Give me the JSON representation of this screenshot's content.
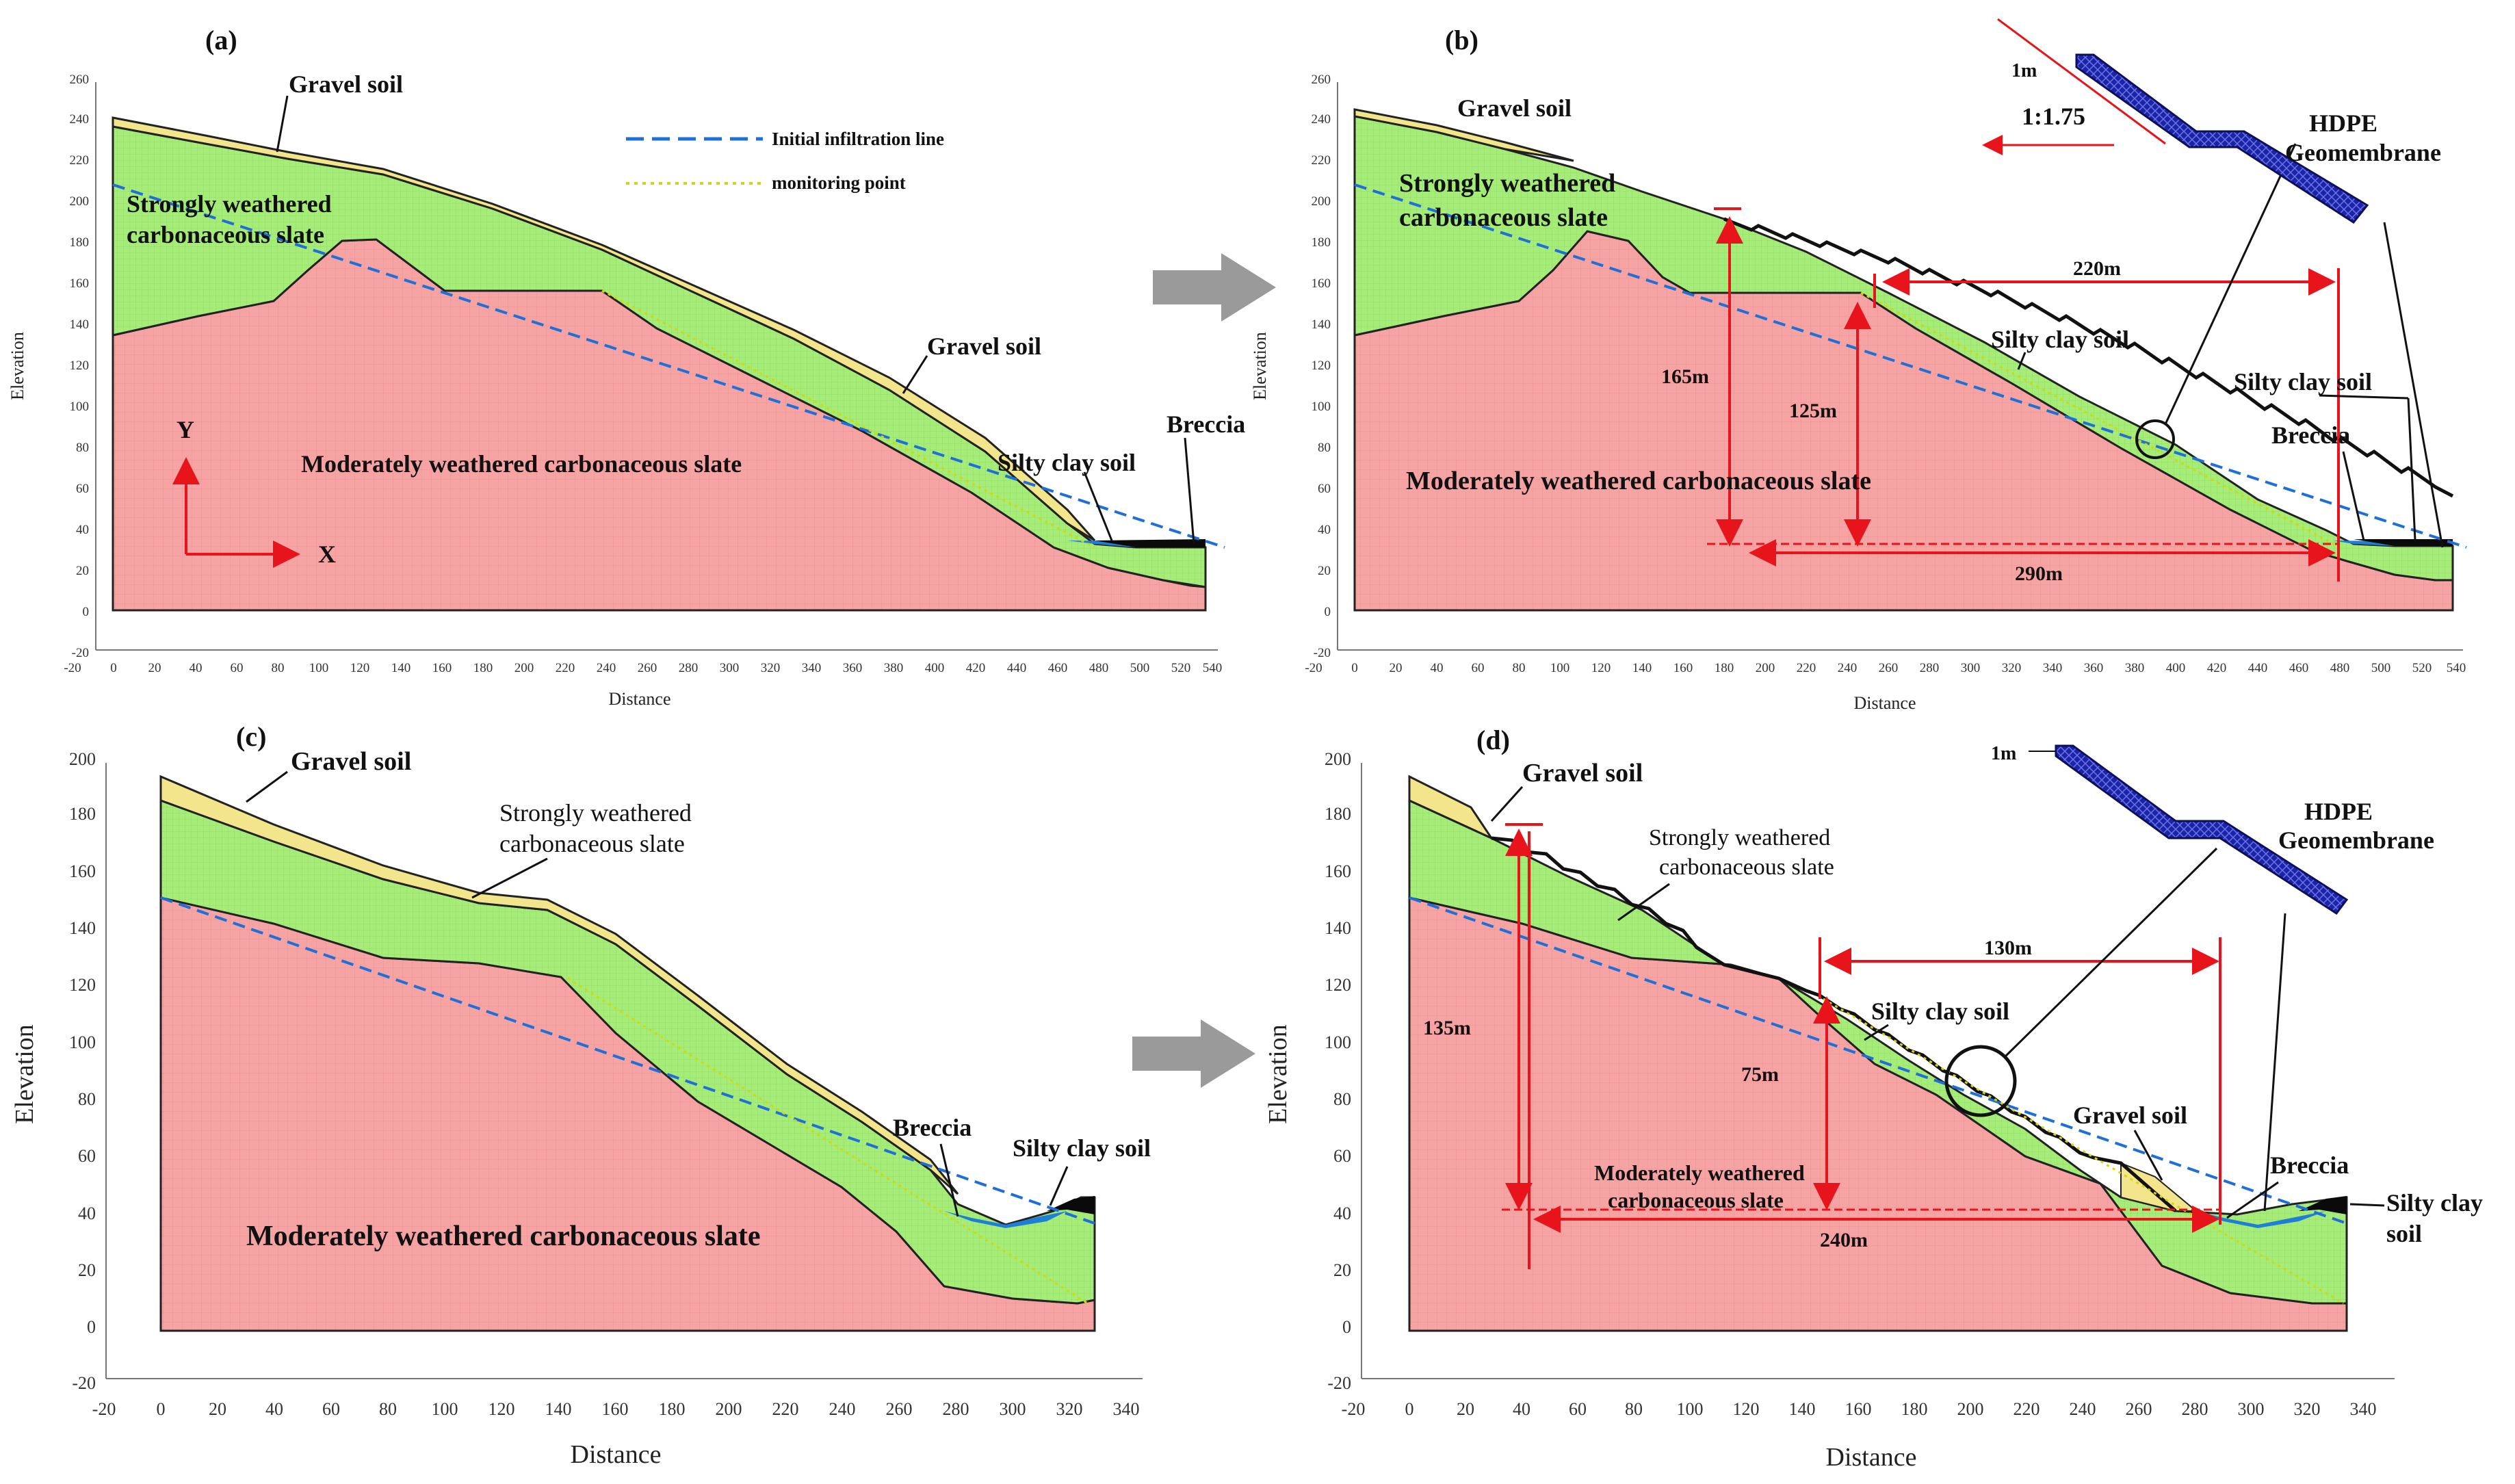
{
  "colors": {
    "moderately_weathered": "#f5a3a3",
    "strongly_weathered": "#a6ec79",
    "gravel": "#f2e58c",
    "breccia": "#1f7fd6",
    "silty_clay": "#0a0a0a",
    "infiltration_line": "#1f6fd8",
    "monitoring_line": "#d8d800",
    "dimension_red": "#e8141c",
    "membrane": "#1b23a6",
    "arrow_gray": "#9a9a9a"
  },
  "panels": [
    {
      "id": "a",
      "tag": "(a)",
      "axes": {
        "xlabel": "Distance",
        "ylabel": "Elevation",
        "x_ticks": [
          "-20",
          "0",
          "20",
          "40",
          "60",
          "80",
          "100",
          "120",
          "140",
          "160",
          "180",
          "200",
          "220",
          "240",
          "260",
          "280",
          "300",
          "320",
          "340",
          "360",
          "380",
          "400",
          "420",
          "440",
          "460",
          "480",
          "500",
          "520",
          "540"
        ],
        "y_ticks": [
          "-20",
          "0",
          "20",
          "40",
          "60",
          "80",
          "100",
          "120",
          "140",
          "160",
          "180",
          "200",
          "220",
          "240",
          "260"
        ]
      },
      "labels": {
        "gravel_top": "Gravel soil",
        "strongly_1": "Strongly weathered",
        "strongly_2": "carbonaceous slate",
        "gravel_right": "Gravel soil",
        "moderately": "Moderately weathered carbonaceous slate",
        "silty_clay": "Silty clay soil",
        "breccia": "Breccia",
        "axis_y": "Y",
        "axis_x": "X"
      },
      "legend": {
        "infiltration": "Initial infiltration line",
        "monitoring": "monitoring point"
      }
    },
    {
      "id": "b",
      "tag": "(b)",
      "axes": {
        "xlabel": "Distance",
        "ylabel": "Elevation",
        "x_ticks": [
          "-20",
          "0",
          "20",
          "40",
          "60",
          "80",
          "100",
          "120",
          "140",
          "160",
          "180",
          "200",
          "220",
          "240",
          "260",
          "280",
          "300",
          "320",
          "340",
          "360",
          "380",
          "400",
          "420",
          "440",
          "460",
          "480",
          "500",
          "520",
          "540"
        ],
        "y_ticks": [
          "-20",
          "0",
          "20",
          "40",
          "60",
          "80",
          "100",
          "120",
          "140",
          "160",
          "180",
          "200",
          "220",
          "240",
          "260"
        ]
      },
      "labels": {
        "gravel_top": "Gravel soil",
        "strongly_1": "Strongly weathered",
        "strongly_2": "carbonaceous slate",
        "silty_clay_mid": "Silty clay soil",
        "moderately": "Moderately weathered carbonaceous slate",
        "silty_clay_right": "Silty clay soil",
        "breccia": "Breccia",
        "dim_220": "220m",
        "dim_165": "165m",
        "dim_125": "125m",
        "dim_290": "290m",
        "inset_1m": "1m",
        "inset_ratio": "1:1.75",
        "hdpe_1": "HDPE",
        "hdpe_2": "Geomembrane"
      }
    },
    {
      "id": "c",
      "tag": "(c)",
      "axes": {
        "xlabel": "Distance",
        "ylabel": "Elevation",
        "x_ticks": [
          "-20",
          "0",
          "20",
          "40",
          "60",
          "80",
          "100",
          "120",
          "140",
          "160",
          "180",
          "200",
          "220",
          "240",
          "260",
          "280",
          "300",
          "320",
          "340"
        ],
        "y_ticks": [
          "-20",
          "0",
          "20",
          "40",
          "60",
          "80",
          "100",
          "120",
          "140",
          "160",
          "180",
          "200"
        ]
      },
      "labels": {
        "gravel_top": "Gravel soil",
        "strongly_1": "Strongly weathered",
        "strongly_2": "carbonaceous slate",
        "breccia": "Breccia",
        "silty_clay": "Silty clay soil",
        "moderately": "Moderately weathered carbonaceous slate"
      }
    },
    {
      "id": "d",
      "tag": "(d)",
      "axes": {
        "xlabel": "Distance",
        "ylabel": "Elevation",
        "x_ticks": [
          "-20",
          "0",
          "20",
          "40",
          "60",
          "80",
          "100",
          "120",
          "140",
          "160",
          "180",
          "200",
          "220",
          "240",
          "260",
          "280",
          "300",
          "320",
          "340"
        ],
        "y_ticks": [
          "-20",
          "0",
          "20",
          "40",
          "60",
          "80",
          "100",
          "120",
          "140",
          "160",
          "180",
          "200"
        ]
      },
      "labels": {
        "gravel_top": "Gravel soil",
        "strongly_1": "Strongly weathered",
        "strongly_2": "carbonaceous slate",
        "silty_clay_mid": "Silty clay soil",
        "gravel_mid": "Gravel soil",
        "breccia": "Breccia",
        "silty_clay_1": "Silty clay",
        "silty_clay_2": "soil",
        "moderately_1": "Moderately weathered",
        "moderately_2": "carbonaceous slate",
        "dim_130": "130m",
        "dim_135": "135m",
        "dim_75": "75m",
        "dim_240": "240m",
        "inset_1m": "1m",
        "hdpe_1": "HDPE",
        "hdpe_2": "Geomembrane"
      }
    }
  ]
}
